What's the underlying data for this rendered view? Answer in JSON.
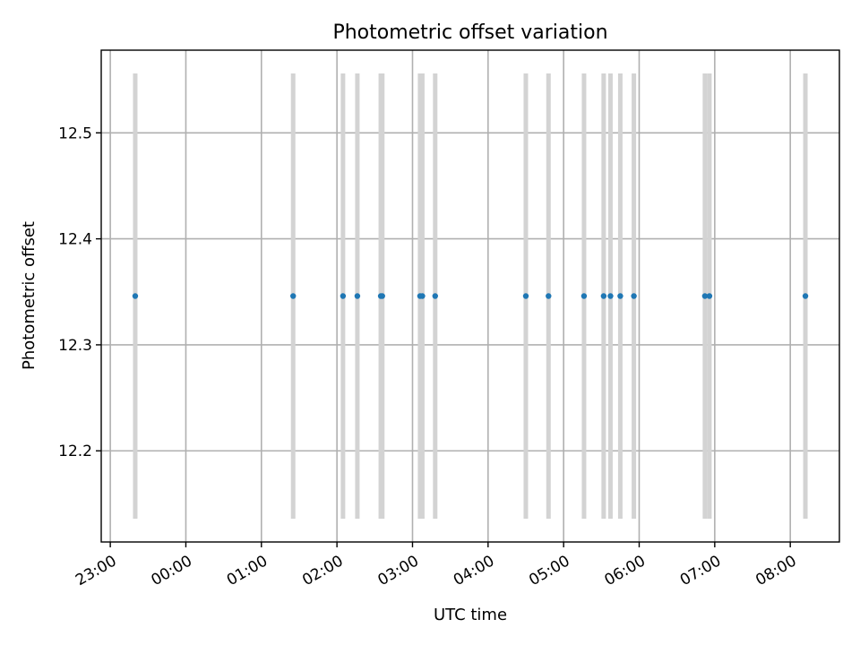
{
  "chart_data": {
    "type": "scatter",
    "title": "Photometric offset variation",
    "xlabel": "UTC time",
    "ylabel": "Photometric offset",
    "x_ticks": [
      "23:00",
      "00:00",
      "01:00",
      "02:00",
      "03:00",
      "04:00",
      "05:00",
      "06:00",
      "07:00",
      "08:00"
    ],
    "y_ticks": [
      12.2,
      12.3,
      12.4,
      12.5
    ],
    "xlim_hours": [
      -0.12,
      9.65
    ],
    "ylim": [
      12.114,
      12.578
    ],
    "grid": true,
    "colors": {
      "point": "#1f77b4",
      "errorbar": "#d3d3d3",
      "grid": "#b0b0b0"
    },
    "series": [
      {
        "x_hours": [
          0.33,
          2.42,
          3.08,
          3.27,
          3.58,
          3.6,
          4.1,
          4.13,
          4.3,
          5.5,
          5.8,
          6.27,
          6.53,
          6.62,
          6.75,
          6.93,
          7.87,
          7.93,
          9.2
        ],
        "y": [
          12.346,
          12.346,
          12.346,
          12.346,
          12.346,
          12.346,
          12.346,
          12.346,
          12.346,
          12.346,
          12.346,
          12.346,
          12.346,
          12.346,
          12.346,
          12.346,
          12.346,
          12.346,
          12.346
        ],
        "y_low": [
          12.136,
          12.136,
          12.136,
          12.136,
          12.136,
          12.136,
          12.136,
          12.136,
          12.136,
          12.136,
          12.136,
          12.136,
          12.136,
          12.136,
          12.136,
          12.136,
          12.136,
          12.136,
          12.136
        ],
        "y_high": [
          12.556,
          12.556,
          12.556,
          12.556,
          12.556,
          12.556,
          12.556,
          12.556,
          12.556,
          12.556,
          12.556,
          12.556,
          12.556,
          12.556,
          12.556,
          12.556,
          12.556,
          12.556,
          12.556
        ]
      }
    ]
  }
}
